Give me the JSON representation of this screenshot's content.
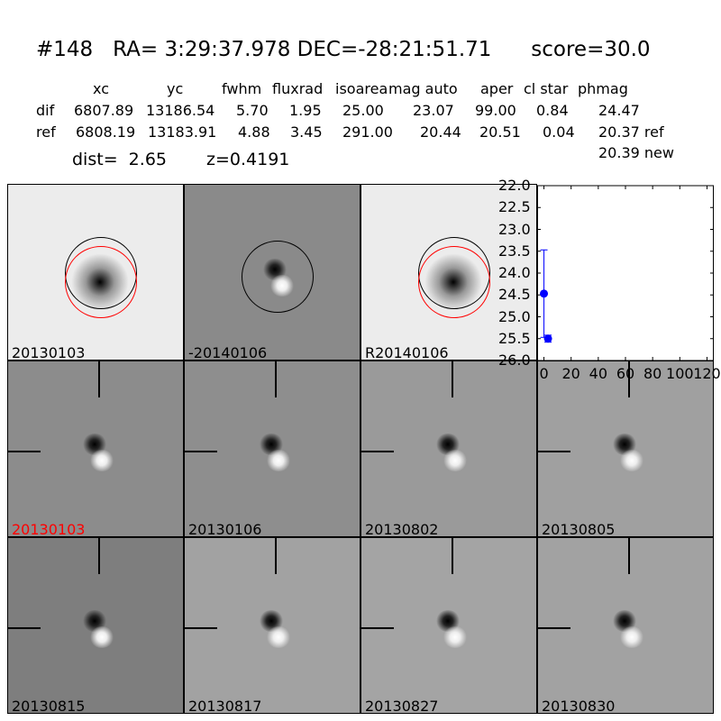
{
  "title": "#148   RA= 3:29:37.978 DEC=-28:21:51.71      score=30.0",
  "table": {
    "headers": [
      "xc",
      "yc",
      "fwhm",
      "fluxrad",
      "isoarea",
      "mag auto",
      "aper",
      "cl star",
      "phmag"
    ],
    "rows": [
      {
        "label": "dif",
        "values": [
          "6807.89",
          "13186.54",
          "5.70",
          "1.95",
          "25.00",
          "23.07",
          "99.00",
          "0.84",
          "24.47"
        ]
      },
      {
        "label": "ref",
        "values": [
          "6808.19",
          "13183.91",
          "4.88",
          "3.45",
          "291.00",
          "20.44",
          "20.51",
          "0.04",
          "20.37 ref"
        ]
      }
    ],
    "extra": "20.39 new"
  },
  "dist": "dist=  2.65",
  "z": "z=0.4191",
  "stamps": [
    {
      "label": "20130103",
      "bg": "#ececec"
    },
    {
      "label": "-20140106",
      "bg": "#8a8a8a"
    },
    {
      "label": "R20140106",
      "bg": "#ececec"
    },
    {
      "label": "20130103",
      "bg": "#8c8c8c",
      "label_color": "#ff0000"
    },
    {
      "label": "20130106",
      "bg": "#8e8e8e"
    },
    {
      "label": "20130802",
      "bg": "#9a9a9a"
    },
    {
      "label": "20130805",
      "bg": "#a0a0a0"
    },
    {
      "label": "20130815",
      "bg": "#7e7e7e"
    },
    {
      "label": "20130817",
      "bg": "#a2a2a2"
    },
    {
      "label": "20130827",
      "bg": "#a4a4a4"
    },
    {
      "label": "20130830",
      "bg": "#a2a2a2"
    }
  ],
  "chart_data": {
    "type": "scatter",
    "xlim": [
      -5,
      125
    ],
    "ylim": [
      26.0,
      22.0
    ],
    "y_inverted": true,
    "xticks": [
      "0",
      "20",
      "40",
      "60",
      "80",
      "100",
      "120"
    ],
    "yticks": [
      "22.0",
      "22.5",
      "23.0",
      "23.5",
      "24.0",
      "24.5",
      "25.0",
      "25.5",
      "26.0"
    ],
    "color": "#0000ff",
    "points": [
      {
        "x": 0,
        "y": 24.47,
        "err": 1.0
      },
      {
        "x": 3,
        "y": 25.5,
        "err": 0.08
      }
    ]
  }
}
